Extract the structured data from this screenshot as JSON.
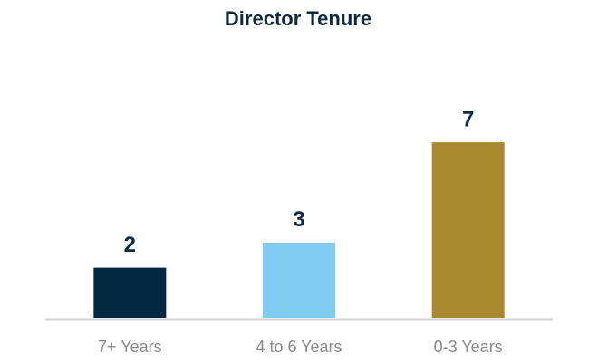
{
  "chart_data": {
    "type": "bar",
    "title": "Director Tenure",
    "categories": [
      "7+ Years",
      "4 to 6 Years",
      "0-3 Years"
    ],
    "values": [
      2,
      3,
      7
    ],
    "colors": [
      "#022842",
      "#7ecdf0",
      "#a8892f"
    ]
  }
}
